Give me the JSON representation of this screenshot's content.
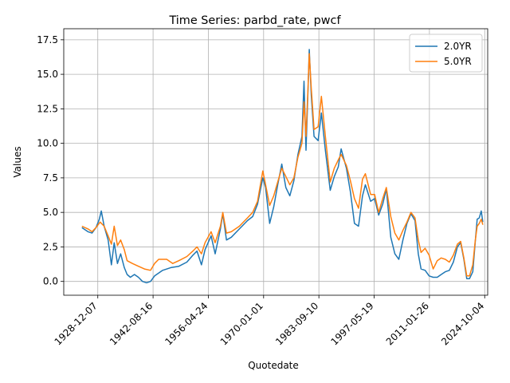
{
  "chart_data": {
    "type": "line",
    "title": "Time Series: parbd_rate, pwcf",
    "xlabel": "Quotedate",
    "ylabel": "Values",
    "x_ticks": [
      "1928-12-07",
      "1942-08-16",
      "1956-04-24",
      "1970-01-01",
      "1983-09-10",
      "1997-05-19",
      "2011-01-26",
      "2024-10-04"
    ],
    "y_ticks": [
      "0.0",
      "2.5",
      "5.0",
      "7.5",
      "10.0",
      "12.5",
      "15.0",
      "17.5"
    ],
    "xlim_years": [
      1920.5,
      2025.5
    ],
    "ylim": [
      -1.0,
      18.3
    ],
    "grid": true,
    "legend_position": "upper right",
    "series": [
      {
        "name": "2.0YR",
        "color": "#1f77b4",
        "points": [
          [
            1925.0,
            3.9
          ],
          [
            1926.5,
            3.6
          ],
          [
            1927.5,
            3.5
          ],
          [
            1928.5,
            3.9
          ],
          [
            1929.3,
            4.5
          ],
          [
            1929.8,
            5.1
          ],
          [
            1930.5,
            4.0
          ],
          [
            1931.5,
            3.0
          ],
          [
            1932.3,
            1.2
          ],
          [
            1933.0,
            2.8
          ],
          [
            1933.8,
            1.3
          ],
          [
            1934.6,
            2.0
          ],
          [
            1935.5,
            1.0
          ],
          [
            1936.2,
            0.5
          ],
          [
            1937.0,
            0.3
          ],
          [
            1938.0,
            0.5
          ],
          [
            1939.0,
            0.3
          ],
          [
            1940.0,
            0.0
          ],
          [
            1941.0,
            -0.1
          ],
          [
            1942.0,
            0.0
          ],
          [
            1943.0,
            0.4
          ],
          [
            1945.0,
            0.8
          ],
          [
            1947.0,
            1.0
          ],
          [
            1949.0,
            1.1
          ],
          [
            1951.0,
            1.4
          ],
          [
            1952.5,
            1.9
          ],
          [
            1953.5,
            2.2
          ],
          [
            1954.6,
            1.2
          ],
          [
            1955.5,
            2.3
          ],
          [
            1957.0,
            3.3
          ],
          [
            1958.0,
            2.0
          ],
          [
            1959.3,
            3.8
          ],
          [
            1959.9,
            4.9
          ],
          [
            1960.8,
            3.0
          ],
          [
            1962.0,
            3.2
          ],
          [
            1964.0,
            3.8
          ],
          [
            1966.0,
            4.4
          ],
          [
            1967.3,
            4.7
          ],
          [
            1968.5,
            5.6
          ],
          [
            1969.8,
            7.5
          ],
          [
            1970.5,
            6.8
          ],
          [
            1971.5,
            4.2
          ],
          [
            1972.5,
            5.4
          ],
          [
            1973.5,
            7.0
          ],
          [
            1974.5,
            8.5
          ],
          [
            1975.5,
            6.8
          ],
          [
            1976.5,
            6.2
          ],
          [
            1977.5,
            7.3
          ],
          [
            1978.5,
            9.2
          ],
          [
            1979.5,
            10.5
          ],
          [
            1980.0,
            14.5
          ],
          [
            1980.5,
            9.5
          ],
          [
            1981.0,
            13.8
          ],
          [
            1981.3,
            16.8
          ],
          [
            1981.8,
            13.5
          ],
          [
            1982.5,
            10.5
          ],
          [
            1983.5,
            10.2
          ],
          [
            1984.3,
            12.2
          ],
          [
            1985.3,
            9.5
          ],
          [
            1986.5,
            6.6
          ],
          [
            1987.5,
            7.6
          ],
          [
            1988.5,
            8.3
          ],
          [
            1989.2,
            9.6
          ],
          [
            1990.5,
            8.2
          ],
          [
            1991.5,
            6.5
          ],
          [
            1992.5,
            4.2
          ],
          [
            1993.5,
            4.0
          ],
          [
            1994.5,
            6.2
          ],
          [
            1995.2,
            7.0
          ],
          [
            1996.5,
            5.8
          ],
          [
            1997.5,
            6.0
          ],
          [
            1998.5,
            4.8
          ],
          [
            1999.5,
            5.6
          ],
          [
            2000.4,
            6.7
          ],
          [
            2001.5,
            3.2
          ],
          [
            2002.5,
            2.0
          ],
          [
            2003.5,
            1.6
          ],
          [
            2004.5,
            3.0
          ],
          [
            2005.5,
            4.2
          ],
          [
            2006.5,
            4.9
          ],
          [
            2007.5,
            4.4
          ],
          [
            2008.3,
            2.0
          ],
          [
            2009.0,
            0.9
          ],
          [
            2010.0,
            0.8
          ],
          [
            2011.0,
            0.4
          ],
          [
            2012.0,
            0.3
          ],
          [
            2013.0,
            0.3
          ],
          [
            2014.0,
            0.5
          ],
          [
            2015.0,
            0.7
          ],
          [
            2016.0,
            0.8
          ],
          [
            2017.0,
            1.4
          ],
          [
            2018.0,
            2.5
          ],
          [
            2018.8,
            2.8
          ],
          [
            2019.6,
            1.6
          ],
          [
            2020.3,
            0.2
          ],
          [
            2021.0,
            0.2
          ],
          [
            2021.8,
            0.7
          ],
          [
            2022.4,
            2.8
          ],
          [
            2022.9,
            4.5
          ],
          [
            2023.4,
            4.6
          ],
          [
            2023.9,
            5.1
          ],
          [
            2024.3,
            4.3
          ]
        ]
      },
      {
        "name": "5.0YR",
        "color": "#ff7f0e",
        "points": [
          [
            1925.0,
            4.0
          ],
          [
            1926.5,
            3.8
          ],
          [
            1927.5,
            3.6
          ],
          [
            1928.5,
            3.9
          ],
          [
            1929.5,
            4.3
          ],
          [
            1930.5,
            4.0
          ],
          [
            1931.5,
            3.3
          ],
          [
            1932.3,
            2.7
          ],
          [
            1933.0,
            4.0
          ],
          [
            1933.8,
            2.6
          ],
          [
            1934.6,
            3.0
          ],
          [
            1935.5,
            2.3
          ],
          [
            1936.2,
            1.5
          ],
          [
            1937.5,
            1.3
          ],
          [
            1939.0,
            1.1
          ],
          [
            1940.5,
            0.9
          ],
          [
            1942.0,
            0.8
          ],
          [
            1943.0,
            1.3
          ],
          [
            1944.0,
            1.6
          ],
          [
            1946.0,
            1.6
          ],
          [
            1947.5,
            1.3
          ],
          [
            1949.0,
            1.5
          ],
          [
            1951.0,
            1.8
          ],
          [
            1952.5,
            2.2
          ],
          [
            1953.5,
            2.5
          ],
          [
            1954.6,
            2.0
          ],
          [
            1955.5,
            2.8
          ],
          [
            1957.0,
            3.6
          ],
          [
            1958.0,
            2.8
          ],
          [
            1959.3,
            4.0
          ],
          [
            1959.9,
            5.0
          ],
          [
            1960.8,
            3.5
          ],
          [
            1962.0,
            3.6
          ],
          [
            1964.0,
            4.0
          ],
          [
            1966.0,
            4.6
          ],
          [
            1967.3,
            5.0
          ],
          [
            1968.5,
            5.8
          ],
          [
            1969.8,
            8.0
          ],
          [
            1970.5,
            7.0
          ],
          [
            1971.5,
            5.5
          ],
          [
            1972.5,
            6.2
          ],
          [
            1973.5,
            7.2
          ],
          [
            1974.5,
            8.2
          ],
          [
            1975.5,
            7.6
          ],
          [
            1976.5,
            7.0
          ],
          [
            1977.5,
            7.5
          ],
          [
            1978.5,
            9.0
          ],
          [
            1979.5,
            10.0
          ],
          [
            1980.0,
            13.0
          ],
          [
            1980.5,
            10.5
          ],
          [
            1981.0,
            14.0
          ],
          [
            1981.3,
            16.5
          ],
          [
            1981.8,
            14.0
          ],
          [
            1982.5,
            11.0
          ],
          [
            1983.5,
            11.2
          ],
          [
            1984.3,
            13.4
          ],
          [
            1985.3,
            10.5
          ],
          [
            1986.5,
            7.2
          ],
          [
            1987.5,
            8.2
          ],
          [
            1988.5,
            8.8
          ],
          [
            1989.2,
            9.2
          ],
          [
            1990.5,
            8.4
          ],
          [
            1991.5,
            7.3
          ],
          [
            1992.5,
            6.0
          ],
          [
            1993.5,
            5.3
          ],
          [
            1994.5,
            7.4
          ],
          [
            1995.2,
            7.8
          ],
          [
            1996.5,
            6.3
          ],
          [
            1997.5,
            6.3
          ],
          [
            1998.5,
            5.0
          ],
          [
            1999.5,
            6.0
          ],
          [
            2000.4,
            6.8
          ],
          [
            2001.5,
            4.7
          ],
          [
            2002.5,
            3.5
          ],
          [
            2003.5,
            3.0
          ],
          [
            2004.5,
            3.7
          ],
          [
            2005.5,
            4.3
          ],
          [
            2006.5,
            5.0
          ],
          [
            2007.5,
            4.6
          ],
          [
            2008.3,
            3.0
          ],
          [
            2009.0,
            2.1
          ],
          [
            2010.0,
            2.4
          ],
          [
            2011.0,
            1.9
          ],
          [
            2012.0,
            0.9
          ],
          [
            2013.0,
            1.5
          ],
          [
            2014.0,
            1.7
          ],
          [
            2015.0,
            1.6
          ],
          [
            2016.0,
            1.4
          ],
          [
            2017.0,
            1.9
          ],
          [
            2018.0,
            2.7
          ],
          [
            2018.8,
            2.9
          ],
          [
            2019.6,
            1.7
          ],
          [
            2020.3,
            0.4
          ],
          [
            2021.0,
            0.4
          ],
          [
            2021.8,
            1.2
          ],
          [
            2022.4,
            2.9
          ],
          [
            2022.9,
            4.0
          ],
          [
            2023.4,
            4.2
          ],
          [
            2023.9,
            4.5
          ],
          [
            2024.3,
            4.1
          ]
        ]
      }
    ]
  }
}
